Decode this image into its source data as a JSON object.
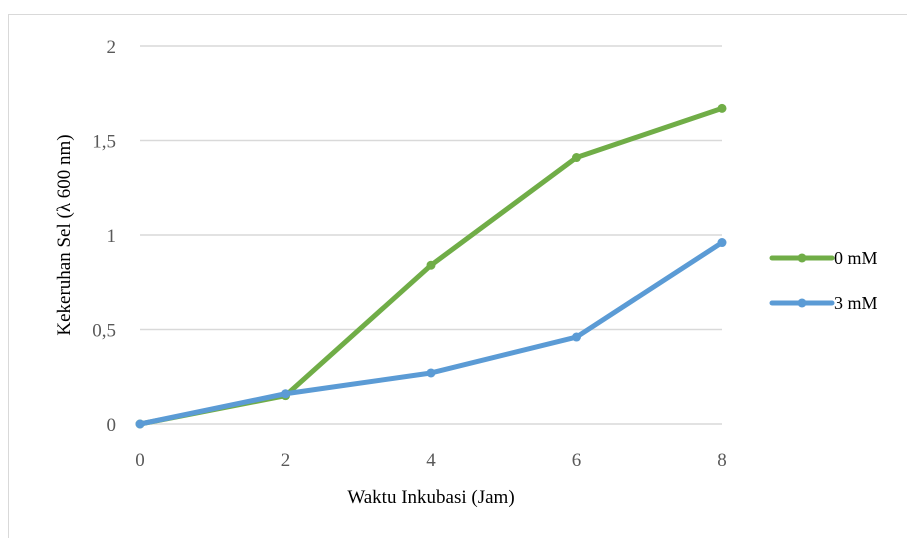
{
  "chart_data": {
    "type": "line",
    "title": "",
    "xlabel": "Waktu Inkubasi (Jam)",
    "ylabel": "Kekeruhan Sel (λ 600 nm)",
    "xlim": [
      0,
      8
    ],
    "ylim": [
      0,
      2
    ],
    "x_ticks": [
      0,
      2,
      4,
      6,
      8
    ],
    "x_tick_labels": [
      "0",
      "2",
      "4",
      "6",
      "8"
    ],
    "y_ticks": [
      0,
      0.5,
      1,
      1.5,
      2
    ],
    "y_tick_labels": [
      "0",
      "0,5",
      "1",
      "1,5",
      "2"
    ],
    "grid": "horizontal",
    "legend_position": "right",
    "series": [
      {
        "name": "0 mM",
        "color": "#70ad47",
        "x": [
          0,
          2,
          4,
          6,
          8
        ],
        "y": [
          0,
          0.15,
          0.84,
          1.41,
          1.67
        ]
      },
      {
        "name": "3 mM",
        "color": "#5b9bd5",
        "x": [
          0,
          2,
          4,
          6,
          8
        ],
        "y": [
          0,
          0.16,
          0.27,
          0.46,
          0.96
        ]
      }
    ]
  }
}
